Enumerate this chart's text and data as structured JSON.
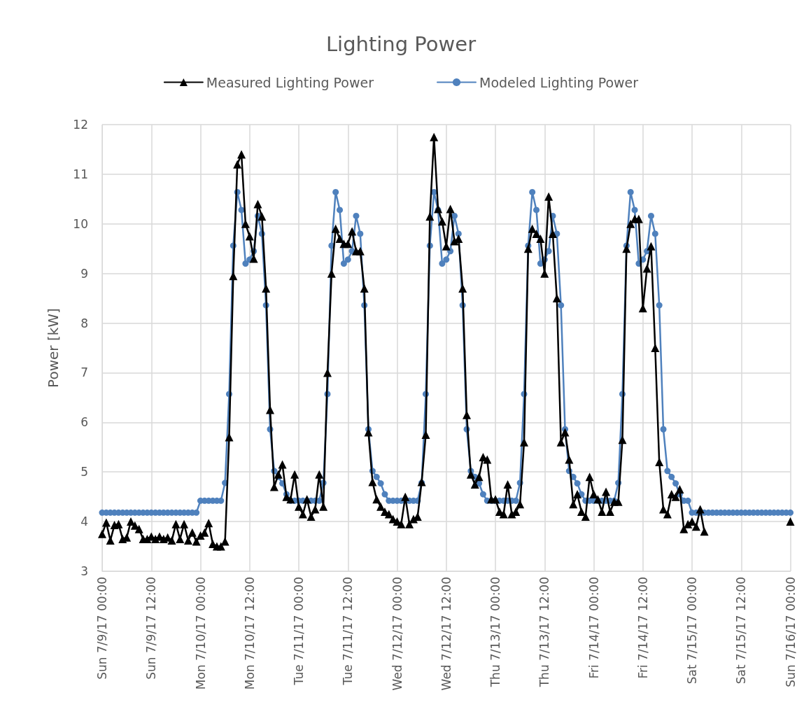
{
  "chart_data": {
    "type": "line",
    "title": "Lighting Power",
    "ylabel": "Power [kW]",
    "categories": [
      "Sun 7/9/17 00:00",
      null,
      null,
      null,
      null,
      null,
      null,
      null,
      null,
      null,
      null,
      null,
      "Sun 7/9/17 12:00",
      null,
      null,
      null,
      null,
      null,
      null,
      null,
      null,
      null,
      null,
      null,
      "Mon 7/10/17 00:00",
      null,
      null,
      null,
      null,
      null,
      null,
      null,
      null,
      null,
      null,
      null,
      "Mon 7/10/17 12:00",
      null,
      null,
      null,
      null,
      null,
      null,
      null,
      null,
      null,
      null,
      null,
      "Tue 7/11/17 00:00",
      null,
      null,
      null,
      null,
      null,
      null,
      null,
      null,
      null,
      null,
      null,
      "Tue 7/11/17 12:00",
      null,
      null,
      null,
      null,
      null,
      null,
      null,
      null,
      null,
      null,
      null,
      "Wed 7/12/17 00:00",
      null,
      null,
      null,
      null,
      null,
      null,
      null,
      null,
      null,
      null,
      null,
      "Wed 7/12/17 12:00",
      null,
      null,
      null,
      null,
      null,
      null,
      null,
      null,
      null,
      null,
      null,
      "Thu 7/13/17 00:00",
      null,
      null,
      null,
      null,
      null,
      null,
      null,
      null,
      null,
      null,
      null,
      "Thu 7/13/17 12:00",
      null,
      null,
      null,
      null,
      null,
      null,
      null,
      null,
      null,
      null,
      null,
      "Fri 7/14/17 00:00",
      null,
      null,
      null,
      null,
      null,
      null,
      null,
      null,
      null,
      null,
      null,
      "Fri 7/14/17 12:00",
      null,
      null,
      null,
      null,
      null,
      null,
      null,
      null,
      null,
      null,
      null,
      "Sat 7/15/17 00:00",
      null,
      null,
      null,
      null,
      null,
      null,
      null,
      null,
      null,
      null,
      null,
      "Sat 7/15/17 12:00",
      null,
      null,
      null,
      null,
      null,
      null,
      null,
      null,
      null,
      null,
      null,
      "Sun 7/16/17 00:00"
    ],
    "series": [
      {
        "name": "Measured Lighting Power",
        "color": "#000000",
        "marker": "triangle",
        "values": [
          3.75,
          3.98,
          3.62,
          3.93,
          3.95,
          3.65,
          3.68,
          4.0,
          3.92,
          3.85,
          3.65,
          3.65,
          3.7,
          3.65,
          3.7,
          3.65,
          3.68,
          3.62,
          3.95,
          3.65,
          3.95,
          3.62,
          3.78,
          3.6,
          3.72,
          3.78,
          3.97,
          3.55,
          3.5,
          3.5,
          3.6,
          5.7,
          8.95,
          11.2,
          11.4,
          10.0,
          9.75,
          9.3,
          10.4,
          10.15,
          8.7,
          6.25,
          4.7,
          4.95,
          5.15,
          4.5,
          4.45,
          4.95,
          4.3,
          4.15,
          4.45,
          4.1,
          4.25,
          4.95,
          4.3,
          7.0,
          9.0,
          9.9,
          9.7,
          9.6,
          9.6,
          9.85,
          9.45,
          9.45,
          8.7,
          5.8,
          4.8,
          4.45,
          4.3,
          4.2,
          4.15,
          4.05,
          4.0,
          3.95,
          4.5,
          3.95,
          4.05,
          4.1,
          4.8,
          5.75,
          10.15,
          11.75,
          10.3,
          10.05,
          9.55,
          10.3,
          9.65,
          9.7,
          8.7,
          6.15,
          4.95,
          4.75,
          4.9,
          5.3,
          5.25,
          4.45,
          4.45,
          4.2,
          4.15,
          4.75,
          4.15,
          4.2,
          4.35,
          5.6,
          9.5,
          9.9,
          9.8,
          9.7,
          9.0,
          10.55,
          9.8,
          8.5,
          5.6,
          5.8,
          5.25,
          4.35,
          4.55,
          4.2,
          4.1,
          4.9,
          4.55,
          4.45,
          4.2,
          4.6,
          4.2,
          4.4,
          4.4,
          5.65,
          9.5,
          10.0,
          10.1,
          10.1,
          8.3,
          9.1,
          9.55,
          7.5,
          5.2,
          4.25,
          4.15,
          4.55,
          4.5,
          4.65,
          3.85,
          3.95,
          4.0,
          3.9,
          4.25,
          3.8,
          null,
          null,
          null,
          null,
          null,
          null,
          null,
          null,
          null,
          null,
          null,
          null,
          null,
          null,
          null,
          null,
          null,
          null,
          null,
          null,
          4.0
        ]
      },
      {
        "name": "Modeled Lighting Power",
        "color": "#4f81bd",
        "marker": "circle",
        "values": [
          4.18,
          4.18,
          4.18,
          4.18,
          4.18,
          4.18,
          4.18,
          4.18,
          4.18,
          4.18,
          4.18,
          4.18,
          4.18,
          4.18,
          4.18,
          4.18,
          4.18,
          4.18,
          4.18,
          4.18,
          4.18,
          4.18,
          4.18,
          4.18,
          4.42,
          4.42,
          4.42,
          4.42,
          4.42,
          4.42,
          4.78,
          6.57,
          9.56,
          10.64,
          10.28,
          9.2,
          9.28,
          9.45,
          10.16,
          9.8,
          8.36,
          5.86,
          5.02,
          4.9,
          4.77,
          4.55,
          4.42,
          4.42,
          4.42,
          4.42,
          4.42,
          4.42,
          4.42,
          4.42,
          4.78,
          6.57,
          9.56,
          10.64,
          10.28,
          9.2,
          9.28,
          9.45,
          10.16,
          9.8,
          8.36,
          5.86,
          5.02,
          4.9,
          4.77,
          4.55,
          4.42,
          4.42,
          4.42,
          4.42,
          4.42,
          4.42,
          4.42,
          4.42,
          4.78,
          6.57,
          9.56,
          10.64,
          10.28,
          9.2,
          9.28,
          9.45,
          10.16,
          9.8,
          8.36,
          5.86,
          5.02,
          4.9,
          4.77,
          4.55,
          4.42,
          4.42,
          4.42,
          4.42,
          4.42,
          4.42,
          4.42,
          4.42,
          4.78,
          6.57,
          9.56,
          10.64,
          10.28,
          9.2,
          9.28,
          9.45,
          10.16,
          9.8,
          8.36,
          5.86,
          5.02,
          4.9,
          4.77,
          4.55,
          4.42,
          4.42,
          4.42,
          4.42,
          4.42,
          4.42,
          4.42,
          4.42,
          4.78,
          6.57,
          9.56,
          10.64,
          10.28,
          9.2,
          9.28,
          9.45,
          10.16,
          9.8,
          8.36,
          5.86,
          5.02,
          4.9,
          4.77,
          4.55,
          4.42,
          4.42,
          4.18,
          4.18,
          4.18,
          4.18,
          4.18,
          4.18,
          4.18,
          4.18,
          4.18,
          4.18,
          4.18,
          4.18,
          4.18,
          4.18,
          4.18,
          4.18,
          4.18,
          4.18,
          4.18,
          4.18,
          4.18,
          4.18,
          4.18,
          4.18,
          4.18
        ]
      }
    ],
    "ylim": [
      3,
      12
    ],
    "yticks": [
      3,
      4,
      5,
      6,
      7,
      8,
      9,
      10,
      11,
      12
    ],
    "grid": true,
    "legend": "top",
    "line_style": "solid"
  }
}
